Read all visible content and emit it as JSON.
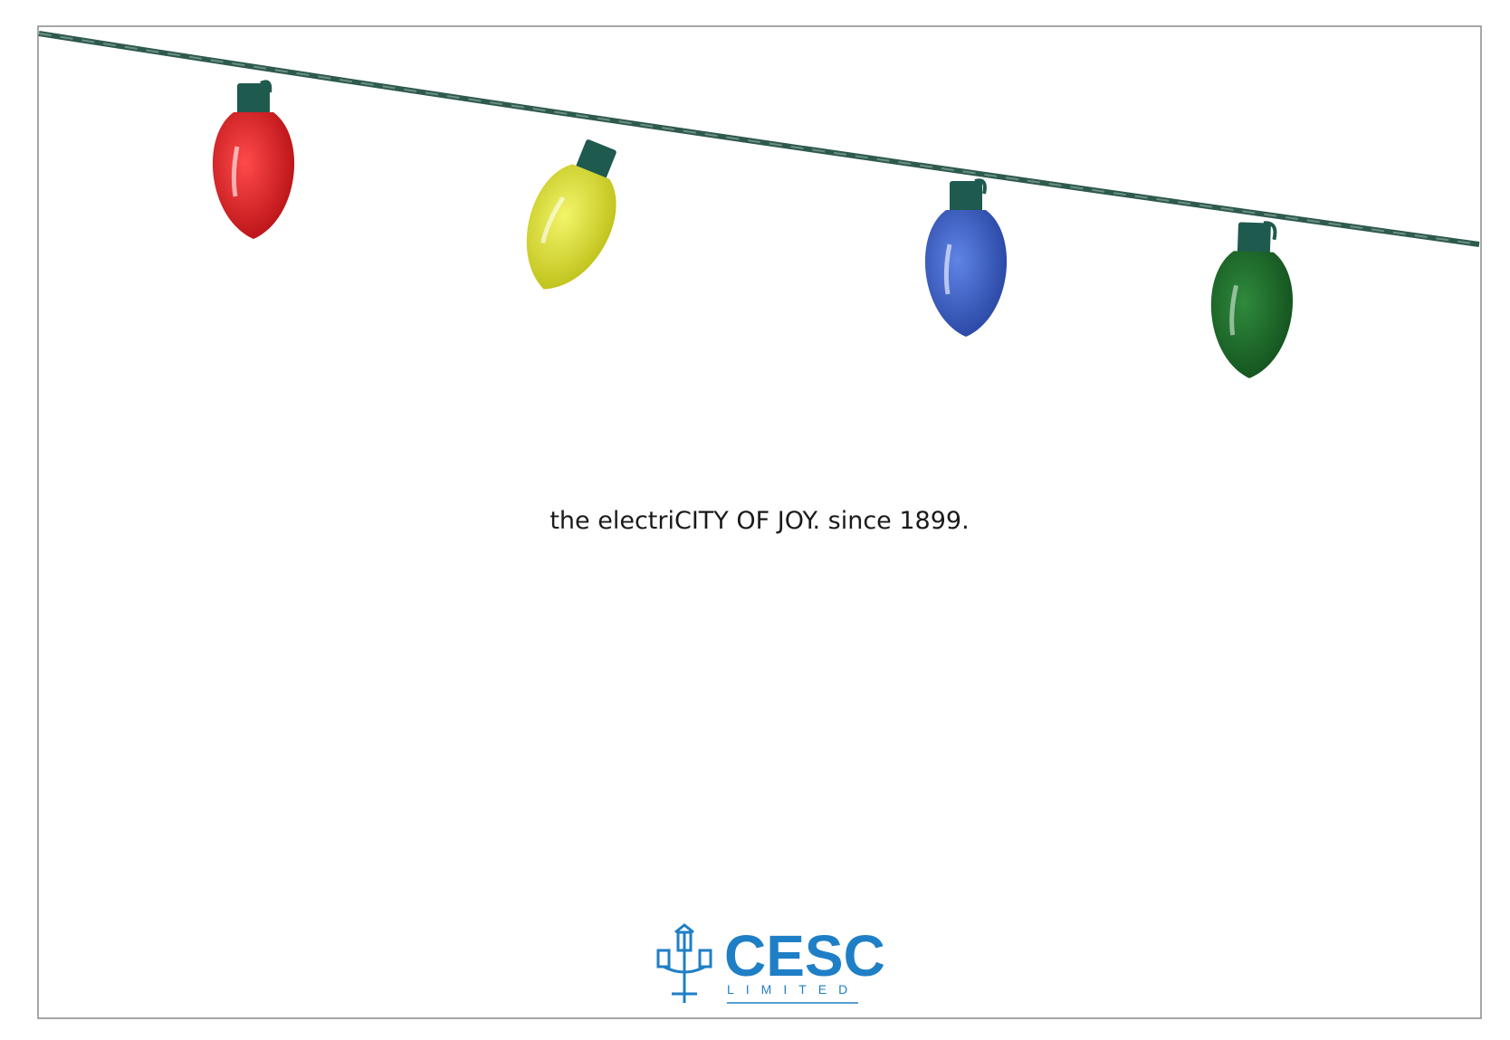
{
  "tagline": "the electriCITY OF JOY. since 1899.",
  "logo": {
    "name": "CESC",
    "subtitle": "LIMITED"
  }
}
